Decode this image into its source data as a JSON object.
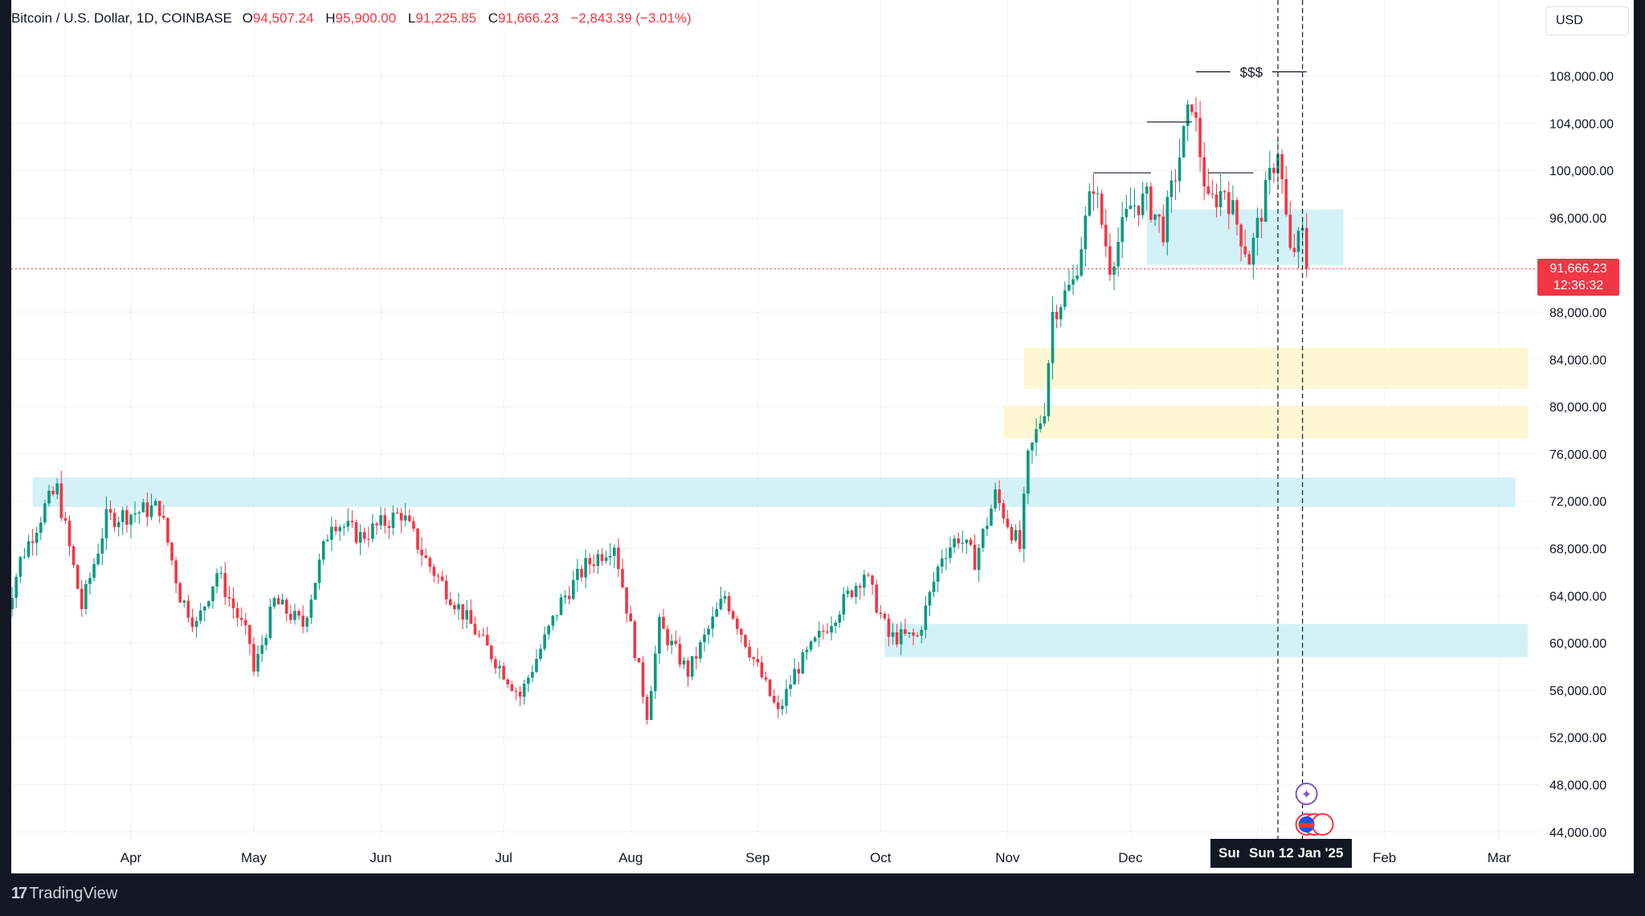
{
  "legend": {
    "symbol": "Bitcoin / U.S. Dollar, 1D, COINBASE",
    "o_label": "O",
    "o": "94,507.24",
    "h_label": "H",
    "h": "95,900.00",
    "l_label": "L",
    "l": "91,225.85",
    "c_label": "C",
    "c": "91,666.23",
    "change": "−2,843.39 (−3.01%)"
  },
  "currency": "USD",
  "last_price": {
    "price": "91,666.23",
    "countdown": "12:36:32"
  },
  "crosshair_date": {
    "partial": "Sun",
    "full": "Sun 12 Jan '25"
  },
  "annotation": "$$$",
  "footer": {
    "brand": "TradingView"
  },
  "colors": {
    "up": "#089981",
    "down": "#f23645",
    "zone_blue": "#cdeff6",
    "zone_yellow": "#fdf6cf",
    "grid": "#f0f3fa"
  },
  "chart_data": {
    "type": "candlestick",
    "symbol": "BTCUSD",
    "x_ticks": [
      "Apr",
      "May",
      "Jun",
      "Jul",
      "Aug",
      "Sep",
      "Oct",
      "Nov",
      "Dec",
      "Feb",
      "Mar"
    ],
    "y_ticks": [
      "108,000.00",
      "104,000.00",
      "100,000.00",
      "96,000.00",
      "88,000.00",
      "84,000.00",
      "80,000.00",
      "76,000.00",
      "72,000.00",
      "68,000.00",
      "64,000.00",
      "60,000.00",
      "56,000.00",
      "52,000.00",
      "48,000.00",
      "44,000.00"
    ],
    "ylim": [
      43000,
      111000
    ],
    "last_price": 91666.23,
    "zones": [
      {
        "kind": "blue",
        "from": 71500,
        "to": 74000,
        "x_start": "2024-03-08",
        "x_end": "2025-03-05"
      },
      {
        "kind": "blue",
        "from": 58800,
        "to": 61600,
        "x_start": "2024-10-02",
        "x_end": "2025-03-08"
      },
      {
        "kind": "yellow",
        "from": 81500,
        "to": 85000,
        "x_start": "2024-11-05",
        "x_end": "2025-03-08"
      },
      {
        "kind": "yellow",
        "from": 77300,
        "to": 80100,
        "x_start": "2024-10-31",
        "x_end": "2025-03-08"
      },
      {
        "kind": "blue",
        "from": 92000,
        "to": 96700,
        "x_start": "2024-12-05",
        "x_end": "2025-01-22"
      }
    ],
    "levels": [
      {
        "price": 108350,
        "x_start": "2024-12-17",
        "x_end": "2025-01-13"
      },
      {
        "price": 104100,
        "x_start": "2024-12-05",
        "x_end": "2024-12-16"
      },
      {
        "price": 99800,
        "x_start": "2024-11-22",
        "x_end": "2024-12-06"
      },
      {
        "price": 99800,
        "x_start": "2024-12-20",
        "x_end": "2024-12-31"
      }
    ],
    "vlines": [
      "2025-01-06",
      "2025-01-12"
    ],
    "waypoints": [
      [
        "2024-03-01",
        62000
      ],
      [
        "2024-03-05",
        67000
      ],
      [
        "2024-03-11",
        71500
      ],
      [
        "2024-03-14",
        73000
      ],
      [
        "2024-03-20",
        63000
      ],
      [
        "2024-03-26",
        70500
      ],
      [
        "2024-04-08",
        71500
      ],
      [
        "2024-04-13",
        64000
      ],
      [
        "2024-04-17",
        61500
      ],
      [
        "2024-04-22",
        66000
      ],
      [
        "2024-04-30",
        60000
      ],
      [
        "2024-05-01",
        57500
      ],
      [
        "2024-05-06",
        63500
      ],
      [
        "2024-05-13",
        61500
      ],
      [
        "2024-05-20",
        70500
      ],
      [
        "2024-05-27",
        69000
      ],
      [
        "2024-06-06",
        71000
      ],
      [
        "2024-06-12",
        67000
      ],
      [
        "2024-06-24",
        61000
      ],
      [
        "2024-07-05",
        55500
      ],
      [
        "2024-07-15",
        63500
      ],
      [
        "2024-07-21",
        66500
      ],
      [
        "2024-07-28",
        68500
      ],
      [
        "2024-08-05",
        54000
      ],
      [
        "2024-08-08",
        61500
      ],
      [
        "2024-08-15",
        57500
      ],
      [
        "2024-08-24",
        64000
      ],
      [
        "2024-09-06",
        54000
      ],
      [
        "2024-09-10",
        57500
      ],
      [
        "2024-09-18",
        61500
      ],
      [
        "2024-09-27",
        66000
      ],
      [
        "2024-10-03",
        60500
      ],
      [
        "2024-10-10",
        60500
      ],
      [
        "2024-10-16",
        67500
      ],
      [
        "2024-10-20",
        69000
      ],
      [
        "2024-10-24",
        67000
      ],
      [
        "2024-10-29",
        72500
      ],
      [
        "2024-11-04",
        68000
      ],
      [
        "2024-11-06",
        75500
      ],
      [
        "2024-11-10",
        80000
      ],
      [
        "2024-11-12",
        88000
      ],
      [
        "2024-11-17",
        90500
      ],
      [
        "2024-11-22",
        99000
      ],
      [
        "2024-11-26",
        92000
      ],
      [
        "2024-12-01",
        97000
      ],
      [
        "2024-12-05",
        97500
      ],
      [
        "2024-12-09",
        95000
      ],
      [
        "2024-12-16",
        106000
      ],
      [
        "2024-12-20",
        97000
      ],
      [
        "2024-12-24",
        98500
      ],
      [
        "2024-12-30",
        92500
      ],
      [
        "2025-01-03",
        98000
      ],
      [
        "2025-01-06",
        102000
      ],
      [
        "2025-01-09",
        92800
      ],
      [
        "2025-01-12",
        94500
      ],
      [
        "2025-01-13",
        91666
      ]
    ]
  }
}
